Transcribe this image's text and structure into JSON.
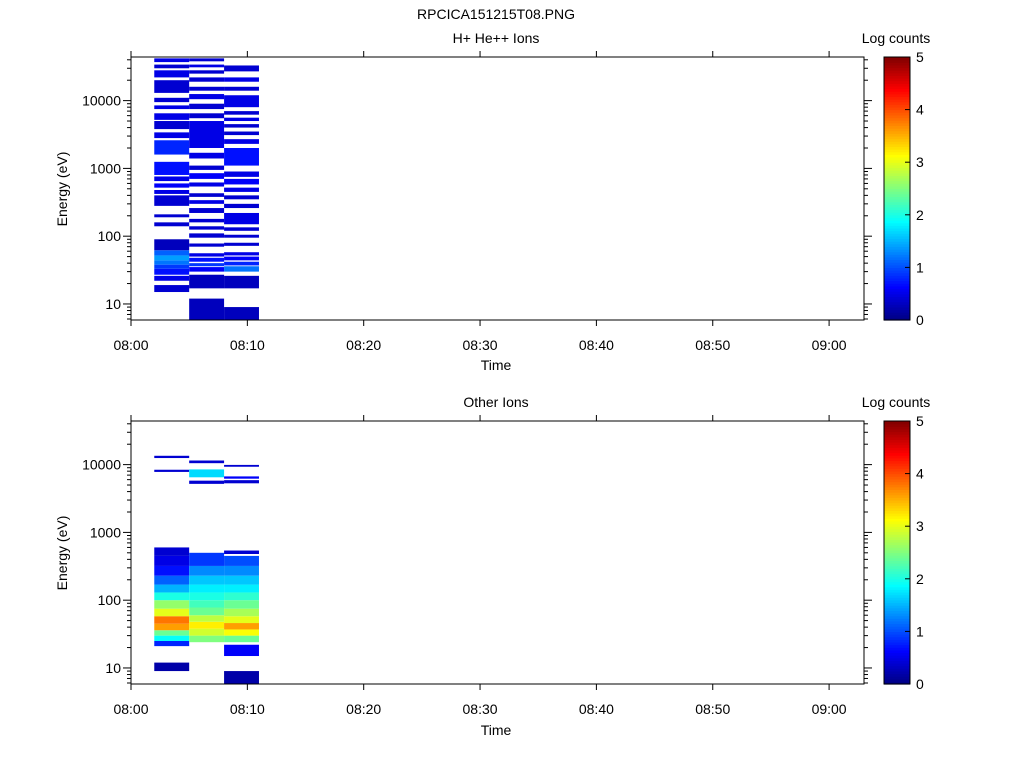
{
  "page_title": "RPCICA151215T08.PNG",
  "chart_data": [
    {
      "type": "heatmap",
      "title": "H+ He++ Ions",
      "xlabel": "Time",
      "ylabel": "Energy (eV)",
      "x_ticks": [
        "08:00",
        "08:10",
        "08:20",
        "08:30",
        "08:40",
        "08:50",
        "09:00"
      ],
      "xlim": [
        "08:00",
        "09:03"
      ],
      "y_scale": "log",
      "y_ticks": [
        "10",
        "100",
        "1000",
        "10000"
      ],
      "ylim": [
        5.8,
        44000
      ],
      "colorbar": {
        "label": "Log counts",
        "ticks": [
          "0",
          "1",
          "2",
          "3",
          "4",
          "5"
        ],
        "range": [
          0,
          5
        ],
        "colormap": "jet"
      },
      "columns": [
        {
          "t_start": "08:02",
          "t_end": "08:05",
          "cells": [
            {
              "e_low": 15,
              "e_high": 19,
              "value": 0.4
            },
            {
              "e_low": 22,
              "e_high": 26,
              "value": 0.5
            },
            {
              "e_low": 27,
              "e_high": 33,
              "value": 0.7
            },
            {
              "e_low": 33,
              "e_high": 38,
              "value": 0.9
            },
            {
              "e_low": 38,
              "e_high": 44,
              "value": 1.2
            },
            {
              "e_low": 44,
              "e_high": 52,
              "value": 1.4
            },
            {
              "e_low": 52,
              "e_high": 62,
              "value": 1.1
            },
            {
              "e_low": 62,
              "e_high": 90,
              "value": 0.3
            },
            {
              "e_low": 140,
              "e_high": 160,
              "value": 0.4
            },
            {
              "e_low": 190,
              "e_high": 210,
              "value": 0.4
            },
            {
              "e_low": 280,
              "e_high": 400,
              "value": 0.4
            },
            {
              "e_low": 420,
              "e_high": 480,
              "value": 0.5
            },
            {
              "e_low": 520,
              "e_high": 600,
              "value": 0.6
            },
            {
              "e_low": 650,
              "e_high": 760,
              "value": 0.5
            },
            {
              "e_low": 800,
              "e_high": 1250,
              "value": 0.7
            },
            {
              "e_low": 1600,
              "e_high": 2600,
              "value": 0.8
            },
            {
              "e_low": 2800,
              "e_high": 3400,
              "value": 0.5
            },
            {
              "e_low": 3800,
              "e_high": 5000,
              "value": 0.4
            },
            {
              "e_low": 5200,
              "e_high": 6500,
              "value": 0.5
            },
            {
              "e_low": 7500,
              "e_high": 8500,
              "value": 0.5
            },
            {
              "e_low": 9500,
              "e_high": 11000,
              "value": 0.4
            },
            {
              "e_low": 13000,
              "e_high": 20000,
              "value": 0.4
            },
            {
              "e_low": 22000,
              "e_high": 28000,
              "value": 0.5
            },
            {
              "e_low": 30000,
              "e_high": 34000,
              "value": 0.4
            },
            {
              "e_low": 37000,
              "e_high": 42000,
              "value": 0.5
            }
          ]
        },
        {
          "t_start": "08:05",
          "t_end": "08:08",
          "cells": [
            {
              "e_low": 5.8,
              "e_high": 12,
              "value": 0.3
            },
            {
              "e_low": 17,
              "e_high": 27,
              "value": 0.3
            },
            {
              "e_low": 30,
              "e_high": 35,
              "value": 0.6
            },
            {
              "e_low": 36,
              "e_high": 40,
              "value": 0.9
            },
            {
              "e_low": 42,
              "e_high": 48,
              "value": 0.7
            },
            {
              "e_low": 50,
              "e_high": 56,
              "value": 0.5
            },
            {
              "e_low": 70,
              "e_high": 78,
              "value": 0.4
            },
            {
              "e_low": 95,
              "e_high": 110,
              "value": 0.4
            },
            {
              "e_low": 125,
              "e_high": 140,
              "value": 0.4
            },
            {
              "e_low": 160,
              "e_high": 180,
              "value": 0.4
            },
            {
              "e_low": 220,
              "e_high": 260,
              "value": 0.4
            },
            {
              "e_low": 300,
              "e_high": 340,
              "value": 0.5
            },
            {
              "e_low": 380,
              "e_high": 430,
              "value": 0.4
            },
            {
              "e_low": 540,
              "e_high": 620,
              "value": 0.5
            },
            {
              "e_low": 700,
              "e_high": 850,
              "value": 0.6
            },
            {
              "e_low": 950,
              "e_high": 1100,
              "value": 0.4
            },
            {
              "e_low": 1400,
              "e_high": 1700,
              "value": 0.5
            },
            {
              "e_low": 2000,
              "e_high": 5000,
              "value": 0.5
            },
            {
              "e_low": 5500,
              "e_high": 6500,
              "value": 0.4
            },
            {
              "e_low": 7500,
              "e_high": 9000,
              "value": 0.4
            },
            {
              "e_low": 10500,
              "e_high": 12500,
              "value": 0.5
            },
            {
              "e_low": 14000,
              "e_high": 16000,
              "value": 0.4
            },
            {
              "e_low": 19000,
              "e_high": 22000,
              "value": 0.4
            },
            {
              "e_low": 25000,
              "e_high": 28000,
              "value": 0.4
            },
            {
              "e_low": 31000,
              "e_high": 34000,
              "value": 0.5
            },
            {
              "e_low": 38000,
              "e_high": 42000,
              "value": 0.4
            }
          ]
        },
        {
          "t_start": "08:08",
          "t_end": "08:11",
          "cells": [
            {
              "e_low": 5.8,
              "e_high": 9,
              "value": 0.3
            },
            {
              "e_low": 17,
              "e_high": 26,
              "value": 0.3
            },
            {
              "e_low": 30,
              "e_high": 36,
              "value": 1.2
            },
            {
              "e_low": 37,
              "e_high": 42,
              "value": 0.8
            },
            {
              "e_low": 44,
              "e_high": 50,
              "value": 0.6
            },
            {
              "e_low": 52,
              "e_high": 58,
              "value": 0.5
            },
            {
              "e_low": 72,
              "e_high": 80,
              "value": 0.4
            },
            {
              "e_low": 95,
              "e_high": 105,
              "value": 0.4
            },
            {
              "e_low": 120,
              "e_high": 135,
              "value": 0.4
            },
            {
              "e_low": 150,
              "e_high": 220,
              "value": 0.5
            },
            {
              "e_low": 260,
              "e_high": 300,
              "value": 0.4
            },
            {
              "e_low": 350,
              "e_high": 400,
              "value": 0.4
            },
            {
              "e_low": 450,
              "e_high": 520,
              "value": 0.5
            },
            {
              "e_low": 580,
              "e_high": 700,
              "value": 0.6
            },
            {
              "e_low": 750,
              "e_high": 900,
              "value": 0.5
            },
            {
              "e_low": 1100,
              "e_high": 2000,
              "value": 0.7
            },
            {
              "e_low": 2300,
              "e_high": 2700,
              "value": 0.5
            },
            {
              "e_low": 3100,
              "e_high": 3500,
              "value": 0.4
            },
            {
              "e_low": 4000,
              "e_high": 4500,
              "value": 0.4
            },
            {
              "e_low": 5000,
              "e_high": 5600,
              "value": 0.5
            },
            {
              "e_low": 6200,
              "e_high": 7000,
              "value": 0.4
            },
            {
              "e_low": 8000,
              "e_high": 12000,
              "value": 0.5
            },
            {
              "e_low": 14000,
              "e_high": 16000,
              "value": 0.4
            },
            {
              "e_low": 19000,
              "e_high": 22000,
              "value": 0.5
            },
            {
              "e_low": 27000,
              "e_high": 33000,
              "value": 0.4
            }
          ]
        }
      ]
    },
    {
      "type": "heatmap",
      "title": "Other Ions",
      "xlabel": "Time",
      "ylabel": "Energy (eV)",
      "x_ticks": [
        "08:00",
        "08:10",
        "08:20",
        "08:30",
        "08:40",
        "08:50",
        "09:00"
      ],
      "xlim": [
        "08:00",
        "09:03"
      ],
      "y_scale": "log",
      "y_ticks": [
        "10",
        "100",
        "1000",
        "10000"
      ],
      "ylim": [
        5.8,
        44000
      ],
      "colorbar": {
        "label": "Log counts",
        "ticks": [
          "0",
          "1",
          "2",
          "3",
          "4",
          "5"
        ],
        "range": [
          0,
          5
        ],
        "colormap": "jet"
      },
      "columns": [
        {
          "t_start": "08:02",
          "t_end": "08:05",
          "cells": [
            {
              "e_low": 9,
              "e_high": 12,
              "value": 0.2
            },
            {
              "e_low": 21,
              "e_high": 25,
              "value": 0.8
            },
            {
              "e_low": 25,
              "e_high": 30,
              "value": 1.9
            },
            {
              "e_low": 30,
              "e_high": 36,
              "value": 2.4
            },
            {
              "e_low": 36,
              "e_high": 45,
              "value": 3.6
            },
            {
              "e_low": 45,
              "e_high": 58,
              "value": 3.8
            },
            {
              "e_low": 58,
              "e_high": 75,
              "value": 3.0
            },
            {
              "e_low": 75,
              "e_high": 100,
              "value": 2.6
            },
            {
              "e_low": 100,
              "e_high": 130,
              "value": 2.0
            },
            {
              "e_low": 130,
              "e_high": 170,
              "value": 1.5
            },
            {
              "e_low": 170,
              "e_high": 230,
              "value": 1.1
            },
            {
              "e_low": 230,
              "e_high": 320,
              "value": 0.7
            },
            {
              "e_low": 320,
              "e_high": 450,
              "value": 0.5
            },
            {
              "e_low": 450,
              "e_high": 600,
              "value": 0.4
            },
            {
              "e_low": 7800,
              "e_high": 8400,
              "value": 0.4
            },
            {
              "e_low": 12500,
              "e_high": 13500,
              "value": 0.4
            }
          ]
        },
        {
          "t_start": "08:05",
          "t_end": "08:08",
          "cells": [
            {
              "e_low": 24,
              "e_high": 30,
              "value": 2.5
            },
            {
              "e_low": 30,
              "e_high": 38,
              "value": 2.9
            },
            {
              "e_low": 38,
              "e_high": 48,
              "value": 3.2
            },
            {
              "e_low": 48,
              "e_high": 60,
              "value": 2.8
            },
            {
              "e_low": 60,
              "e_high": 78,
              "value": 2.4
            },
            {
              "e_low": 78,
              "e_high": 100,
              "value": 2.2
            },
            {
              "e_low": 100,
              "e_high": 130,
              "value": 2.0
            },
            {
              "e_low": 130,
              "e_high": 170,
              "value": 1.8
            },
            {
              "e_low": 170,
              "e_high": 230,
              "value": 1.6
            },
            {
              "e_low": 230,
              "e_high": 320,
              "value": 1.3
            },
            {
              "e_low": 320,
              "e_high": 500,
              "value": 0.9
            },
            {
              "e_low": 5200,
              "e_high": 5800,
              "value": 0.4
            },
            {
              "e_low": 6500,
              "e_high": 8500,
              "value": 1.7
            },
            {
              "e_low": 10500,
              "e_high": 11500,
              "value": 0.4
            }
          ]
        },
        {
          "t_start": "08:08",
          "t_end": "08:11",
          "cells": [
            {
              "e_low": 5.8,
              "e_high": 9,
              "value": 0.2
            },
            {
              "e_low": 15,
              "e_high": 22,
              "value": 0.6
            },
            {
              "e_low": 24,
              "e_high": 30,
              "value": 2.4
            },
            {
              "e_low": 30,
              "e_high": 37,
              "value": 3.1
            },
            {
              "e_low": 37,
              "e_high": 46,
              "value": 3.6
            },
            {
              "e_low": 46,
              "e_high": 58,
              "value": 3.0
            },
            {
              "e_low": 58,
              "e_high": 75,
              "value": 2.7
            },
            {
              "e_low": 75,
              "e_high": 100,
              "value": 2.4
            },
            {
              "e_low": 100,
              "e_high": 130,
              "value": 2.1
            },
            {
              "e_low": 130,
              "e_high": 170,
              "value": 1.8
            },
            {
              "e_low": 170,
              "e_high": 230,
              "value": 1.6
            },
            {
              "e_low": 230,
              "e_high": 320,
              "value": 1.3
            },
            {
              "e_low": 320,
              "e_high": 450,
              "value": 1.0
            },
            {
              "e_low": 480,
              "e_high": 540,
              "value": 0.4
            },
            {
              "e_low": 5300,
              "e_high": 5900,
              "value": 0.4
            },
            {
              "e_low": 6200,
              "e_high": 6700,
              "value": 0.6
            },
            {
              "e_low": 9300,
              "e_high": 9900,
              "value": 0.4
            }
          ]
        }
      ]
    }
  ]
}
